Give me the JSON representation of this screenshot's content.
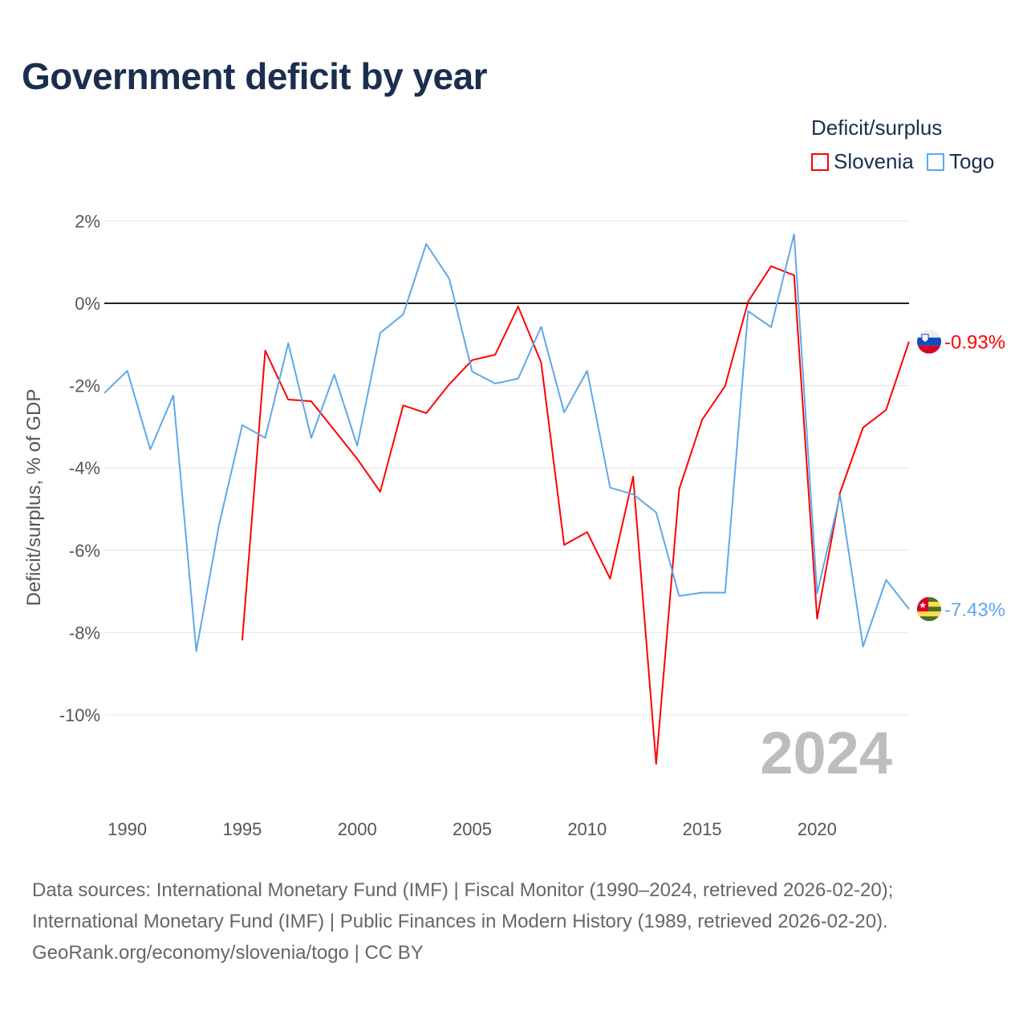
{
  "chart_data": {
    "type": "line",
    "title": "Government deficit by year",
    "ylabel": "Deficit/surplus, % of GDP",
    "xlabel": "",
    "ylim": [
      -12,
      2.2
    ],
    "xlim": [
      1989,
      2024
    ],
    "yticks": [
      2,
      0,
      -2,
      -4,
      -6,
      -8,
      -10
    ],
    "ytick_labels": [
      "2%",
      "0%",
      "-2%",
      "-4%",
      "-6%",
      "-8%",
      "-10%"
    ],
    "xticks": [
      1990,
      1995,
      2000,
      2005,
      2010,
      2015,
      2020
    ],
    "xtick_labels": [
      "1990",
      "1995",
      "2000",
      "2005",
      "2010",
      "2015",
      "2020"
    ],
    "grid": true,
    "legend_title": "Deficit/surplus",
    "legend_position": "top-right",
    "year_watermark": "2024",
    "series": [
      {
        "name": "Slovenia",
        "color": "#ff0000",
        "end_label": "-0.93%",
        "x": [
          1995,
          1996,
          1997,
          1998,
          1999,
          2000,
          2001,
          2002,
          2003,
          2004,
          2005,
          2006,
          2007,
          2008,
          2009,
          2010,
          2011,
          2012,
          2013,
          2014,
          2015,
          2016,
          2017,
          2018,
          2019,
          2020,
          2021,
          2022,
          2023,
          2024
        ],
        "values": [
          -8.19,
          -1.15,
          -2.34,
          -2.38,
          -3.08,
          -3.78,
          -4.58,
          -2.48,
          -2.67,
          -1.97,
          -1.38,
          -1.25,
          -0.08,
          -1.44,
          -5.87,
          -5.56,
          -6.69,
          -4.21,
          -11.19,
          -4.52,
          -2.83,
          -2.01,
          0.04,
          0.9,
          0.68,
          -7.66,
          -4.6,
          -3.02,
          -2.59,
          -0.93
        ]
      },
      {
        "name": "Togo",
        "color": "#5ea8ea",
        "end_label": "-7.43%",
        "x": [
          1989,
          1990,
          1991,
          1992,
          1993,
          1994,
          1995,
          1996,
          1997,
          1998,
          1999,
          2000,
          2001,
          2002,
          2003,
          2004,
          2005,
          2006,
          2007,
          2008,
          2009,
          2010,
          2011,
          2012,
          2013,
          2014,
          2015,
          2016,
          2017,
          2018,
          2019,
          2020,
          2021,
          2022,
          2023,
          2024
        ],
        "values": [
          -2.18,
          -1.64,
          -3.55,
          -2.24,
          -8.45,
          -5.36,
          -2.96,
          -3.27,
          -0.97,
          -3.27,
          -1.73,
          -3.46,
          -0.72,
          -0.27,
          1.44,
          0.6,
          -1.66,
          -1.95,
          -1.83,
          -0.57,
          -2.65,
          -1.64,
          -4.48,
          -4.64,
          -5.08,
          -7.11,
          -7.03,
          -7.03,
          -0.19,
          -0.58,
          1.68,
          -7.05,
          -4.66,
          -8.34,
          -6.72,
          -7.43
        ]
      }
    ]
  },
  "footer": {
    "line1": "Data sources: International Monetary Fund (IMF) | Fiscal Monitor (1990–2024, retrieved 2026-02-20);",
    "line2": "International Monetary Fund (IMF) | Public Finances in Modern History (1989, retrieved 2026-02-20).",
    "line3": "GeoRank.org/economy/slovenia/togo | CC BY"
  }
}
